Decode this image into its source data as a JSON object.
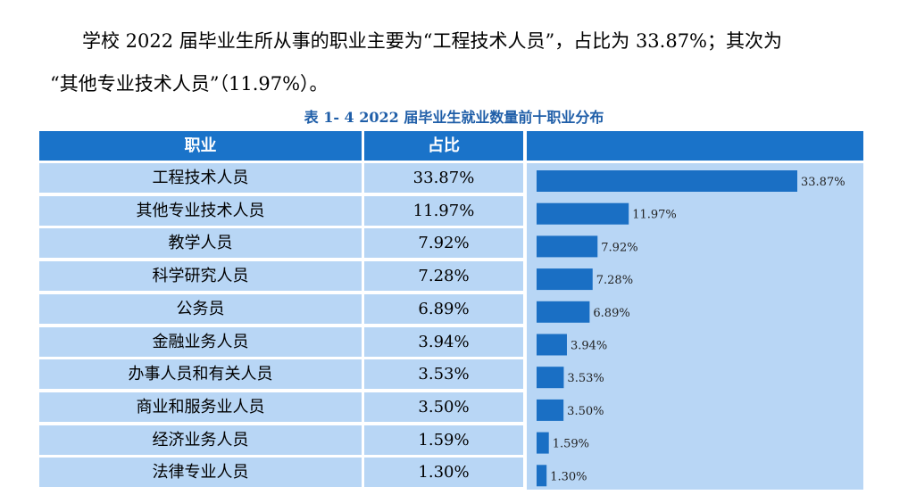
{
  "paragraph": {
    "line1": "学校 2022 届毕业生所从事的职业主要为“工程技术人员”，占比为 33.87%；其次为",
    "line2": "“其他专业技术人员”（11.97%）。"
  },
  "caption": "表 1- 4  2022 届毕业生就业数量前十职业分布",
  "table": {
    "headers": {
      "occupation": "职业",
      "share": "占比",
      "chart": ""
    },
    "rows": [
      {
        "occupation": "工程技术人员",
        "share": "33.87%"
      },
      {
        "occupation": "其他专业技术人员",
        "share": "11.97%"
      },
      {
        "occupation": "教学人员",
        "share": "7.92%"
      },
      {
        "occupation": "科学研究人员",
        "share": "7.28%"
      },
      {
        "occupation": "公务员",
        "share": "6.89%"
      },
      {
        "occupation": "金融业务人员",
        "share": "3.94%"
      },
      {
        "occupation": "办事人员和有关人员",
        "share": "3.53%"
      },
      {
        "occupation": "商业和服务业人员",
        "share": "3.50%"
      },
      {
        "occupation": "经济业务人员",
        "share": "1.59%"
      },
      {
        "occupation": "法律专业人员",
        "share": "1.30%"
      }
    ]
  },
  "chart_data": {
    "type": "bar",
    "orientation": "horizontal",
    "categories": [
      "工程技术人员",
      "其他专业技术人员",
      "教学人员",
      "科学研究人员",
      "公务员",
      "金融业务人员",
      "办事人员和有关人员",
      "商业和服务业人员",
      "经济业务人员",
      "法律专业人员"
    ],
    "values": [
      33.87,
      11.97,
      7.92,
      7.28,
      6.89,
      3.94,
      3.53,
      3.5,
      1.59,
      1.3
    ],
    "labels": [
      "33.87%",
      "11.97%",
      "7.92%",
      "7.28%",
      "6.89%",
      "3.94%",
      "3.53%",
      "3.50%",
      "1.59%",
      "1.30%"
    ],
    "xlim": [
      0,
      33.87
    ],
    "grid": false,
    "legend": "none"
  },
  "colors": {
    "header_bg": "#1a73c9",
    "cell_bg": "#b8d6f5",
    "bar": "#1a6fc4",
    "caption": "#1f5ea8"
  }
}
